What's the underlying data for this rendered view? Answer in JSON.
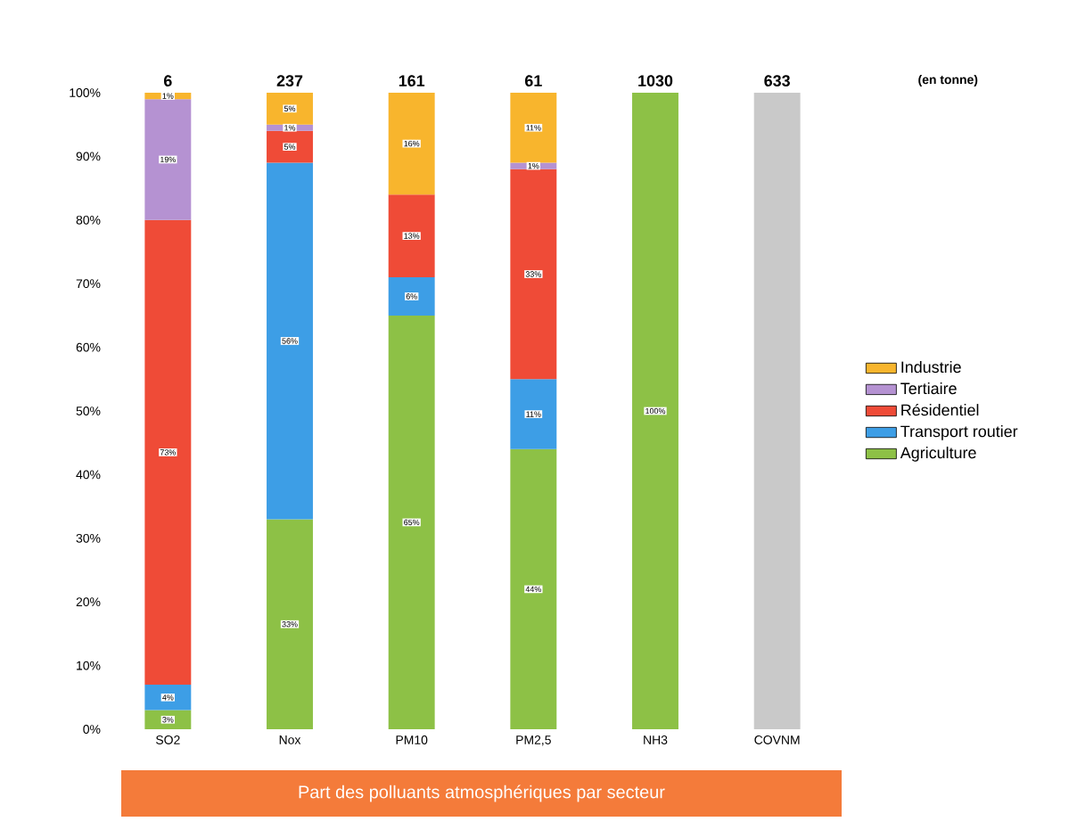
{
  "chart_data": {
    "type": "bar",
    "stacked": true,
    "title": "Part des polluants atmosphériques par secteur",
    "categories": [
      "SO2",
      "Nox",
      "PM10",
      "PM2,5",
      "NH3",
      "COVNM"
    ],
    "series": [
      {
        "name": "Agriculture",
        "color": "#8dc146",
        "values": [
          3,
          33,
          65,
          44,
          100,
          null
        ],
        "value_labels": [
          "3%",
          "33%",
          "65%",
          "44%",
          "100%",
          null
        ]
      },
      {
        "name": "Transport routier",
        "color": "#3d9ee6",
        "values": [
          4,
          56,
          6,
          11,
          null,
          null
        ],
        "value_labels": [
          "4%",
          "56%",
          "6%",
          "11%",
          null,
          null
        ]
      },
      {
        "name": "Résidentiel",
        "color": "#ef4b37",
        "values": [
          73,
          5,
          13,
          33,
          null,
          null
        ],
        "value_labels": [
          "73%",
          "5%",
          "13%",
          "33%",
          null,
          null
        ]
      },
      {
        "name": "Tertiaire",
        "color": "#b592d2",
        "values": [
          19,
          1,
          null,
          1,
          null,
          null
        ],
        "value_labels": [
          "19%",
          "1%",
          null,
          "1%",
          null,
          null
        ]
      },
      {
        "name": "Industrie",
        "color": "#f8b52d",
        "values": [
          1,
          5,
          16,
          11,
          null,
          null
        ],
        "value_labels": [
          "1%",
          "5%",
          "16%",
          "11%",
          null,
          null
        ]
      },
      {
        "color": "#c9c9c9",
        "values": [
          null,
          null,
          null,
          null,
          null,
          100
        ]
      }
    ],
    "ylim": [
      0,
      100
    ],
    "yticks": [
      {
        "value": 0,
        "label": "0%"
      },
      {
        "value": 10,
        "label": "10%"
      },
      {
        "value": 20,
        "label": "20%"
      },
      {
        "value": 30,
        "label": "30%"
      },
      {
        "value": 40,
        "label": "40%"
      },
      {
        "value": 50,
        "label": "50%"
      },
      {
        "value": 60,
        "label": "60%"
      },
      {
        "value": 70,
        "label": "70%"
      },
      {
        "value": 80,
        "label": "80%"
      },
      {
        "value": 90,
        "label": "90%"
      },
      {
        "value": 100,
        "label": "100%"
      }
    ],
    "annotations": [
      "6",
      "237",
      "161",
      "61",
      "1030",
      "633",
      "(en tonne)"
    ],
    "legend": "right",
    "grid": false
  }
}
